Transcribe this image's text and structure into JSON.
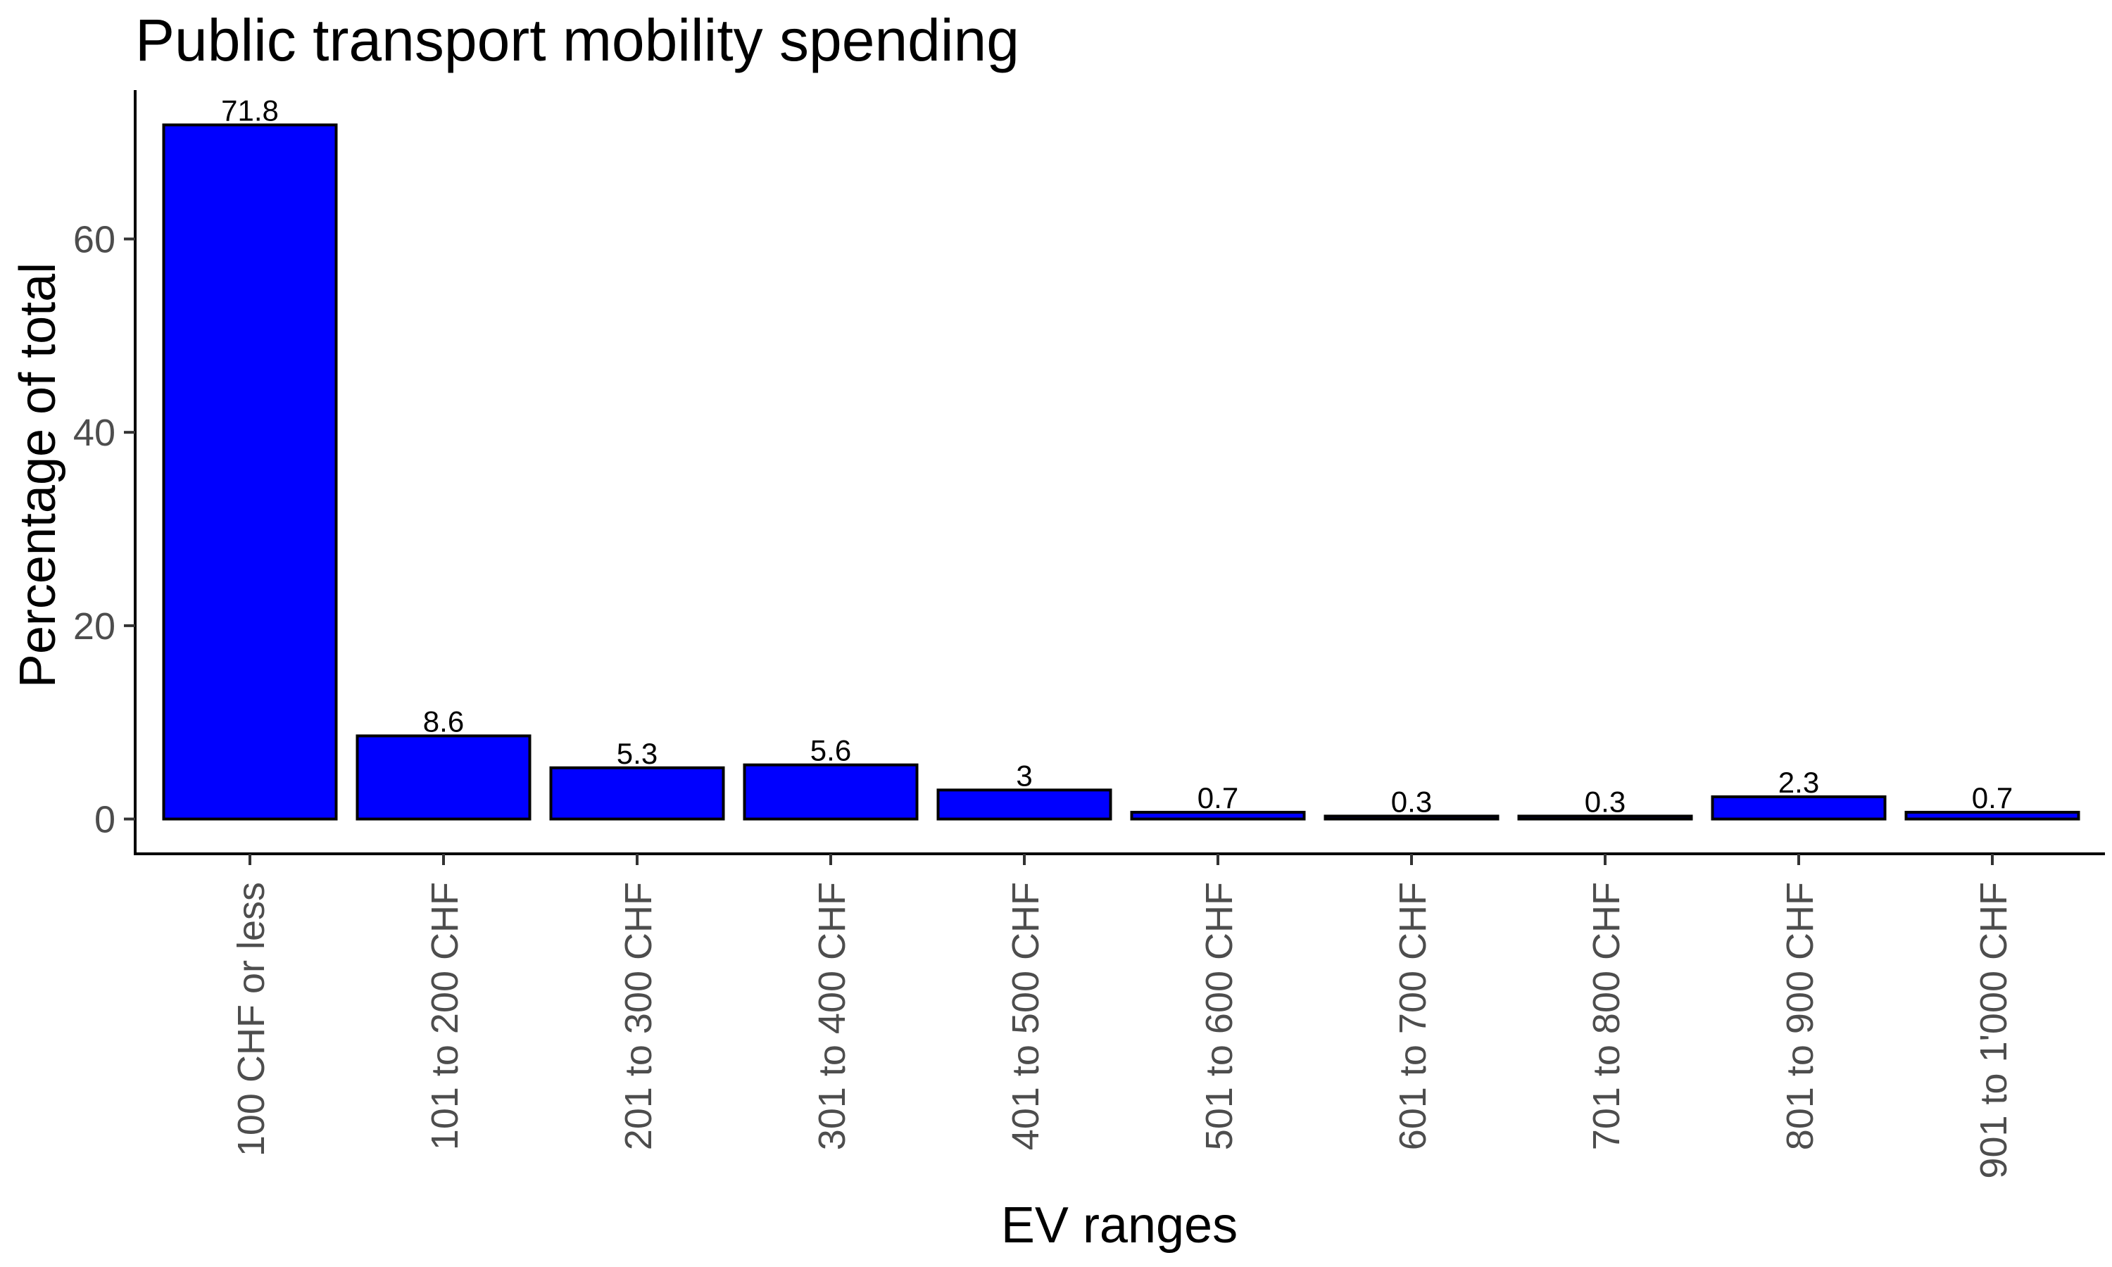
{
  "chart_data": {
    "type": "bar",
    "title": "Public transport mobility spending",
    "xlabel": "EV ranges",
    "ylabel": "Percentage of total",
    "categories": [
      "100 CHF or less",
      "101 to 200 CHF",
      "201 to 300 CHF",
      "301 to 400 CHF",
      "401 to 500 CHF",
      "501 to 600 CHF",
      "601 to 700 CHF",
      "701 to 800 CHF",
      "801 to 900 CHF",
      "901 to 1'000 CHF"
    ],
    "values": [
      71.8,
      8.6,
      5.3,
      5.6,
      3,
      0.7,
      0.3,
      0.3,
      2.3,
      0.7
    ],
    "data_labels": [
      "71.8",
      "8.6",
      "5.3",
      "5.6",
      "3",
      "0.7",
      "0.3",
      "0.3",
      "2.3",
      "0.7"
    ],
    "yticks": [
      0,
      20,
      40,
      60
    ],
    "ylim": [
      -3.6,
      75.4
    ],
    "grid": false,
    "legend": "none",
    "bar_color": "#0000ff",
    "bar_edge_color": "#000000"
  }
}
